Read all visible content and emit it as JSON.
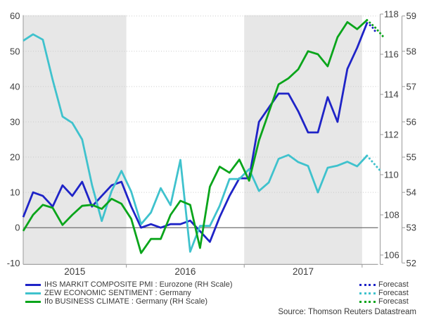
{
  "chart_data": {
    "type": "line",
    "title": "",
    "x_axis": {
      "unit": "month",
      "start": "2015-02",
      "end": "2018-01",
      "year_labels": [
        "2015",
        "2016",
        "2017"
      ],
      "shaded_years": [
        "2015",
        "2017"
      ]
    },
    "axes": {
      "left": {
        "ticks": [
          60,
          50,
          40,
          30,
          20,
          10,
          0,
          -10
        ],
        "range": [
          -10,
          60
        ],
        "grid_ticks": [
          10,
          20,
          30,
          40,
          50,
          60
        ],
        "zero_line": true
      },
      "right1": {
        "ticks": [
          118,
          116,
          114,
          112,
          110,
          108,
          106
        ],
        "range": [
          106,
          118
        ]
      },
      "right2": {
        "ticks": [
          59,
          58,
          57,
          56,
          55,
          54,
          53,
          52
        ],
        "range": [
          52,
          59
        ]
      }
    },
    "series": [
      {
        "id": "pmi",
        "name": "IHS MARKIT COMPOSITE PMI : Eurozone (RH Scale)",
        "axis": "right2",
        "color": "#1F24C7",
        "values": [
          53.3,
          54.0,
          53.9,
          53.6,
          54.2,
          53.9,
          54.3,
          53.6,
          53.9,
          54.2,
          54.3,
          53.6,
          53.0,
          53.1,
          53.0,
          53.1,
          53.1,
          53.2,
          52.9,
          52.6,
          53.3,
          53.9,
          54.4,
          54.4,
          56.0,
          56.4,
          56.8,
          56.8,
          56.3,
          55.7,
          55.7,
          56.7,
          56.0,
          57.5,
          58.1,
          58.8
        ],
        "forecast": {
          "month_offsets": [
            0.5,
            1.0
          ],
          "values": [
            58.7,
            58.5
          ]
        }
      },
      {
        "id": "zew",
        "name": "ZEW ECONOMIC SENTIMENT : Germany",
        "axis": "left",
        "color": "#3FC2CD",
        "values": [
          53.0,
          54.8,
          53.3,
          41.9,
          31.5,
          29.7,
          25.0,
          12.1,
          1.9,
          10.4,
          16.1,
          10.2,
          1.0,
          4.3,
          11.2,
          6.4,
          19.2,
          -6.8,
          0.5,
          0.5,
          6.2,
          13.8,
          13.8,
          16.6,
          10.4,
          12.8,
          19.5,
          20.6,
          18.6,
          17.5,
          10.0,
          17.0,
          17.6,
          18.7,
          17.4,
          20.4
        ],
        "forecast": {
          "month_offsets": [
            0.7,
            1.4
          ],
          "values": [
            18.2,
            16.0
          ]
        }
      },
      {
        "id": "ifo",
        "name": "Ifo BUSINESS CLIMATE : Germany (RH Scale)",
        "axis": "right1",
        "color": "#0AA51B",
        "values": [
          107.2,
          108.0,
          108.5,
          108.35,
          107.5,
          108.0,
          108.45,
          108.5,
          108.3,
          108.8,
          108.55,
          107.8,
          106.1,
          106.8,
          106.8,
          108.0,
          108.7,
          108.5,
          106.35,
          109.4,
          110.4,
          110.1,
          110.75,
          109.7,
          111.7,
          113.1,
          114.5,
          114.8,
          115.25,
          116.15,
          116.0,
          115.4,
          116.85,
          117.6,
          117.25,
          117.7
        ],
        "forecast": {
          "month_offsets": [
            0.8,
            1.6
          ],
          "values": [
            117.35,
            116.9
          ]
        }
      }
    ],
    "forecast_label": "Forecast",
    "source": "Source: Thomson Reuters Datastream",
    "colors": {
      "band": "#E7E7E7",
      "grid": "#C9C9C9",
      "zero_line": "#6F6F6F",
      "axis": "#9A9A9A",
      "text": "#3D3D3D"
    }
  }
}
